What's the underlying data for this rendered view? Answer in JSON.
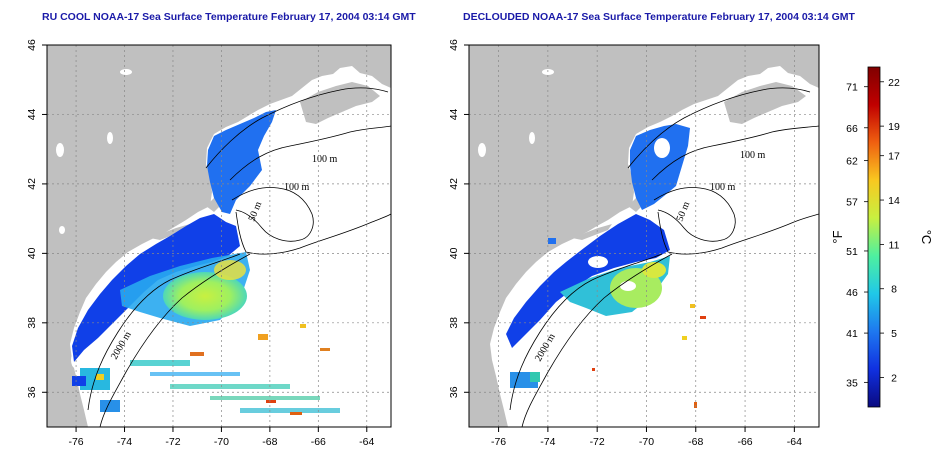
{
  "panels": [
    {
      "id": "left",
      "title": "RU COOL NOAA-17 Sea Surface Temperature February 17, 2004 03:14 GMT",
      "contour_labels": [
        "100 m",
        "100 m",
        "50 m",
        "2000 m"
      ]
    },
    {
      "id": "right",
      "title": "DECLOUDED NOAA-17 Sea Surface Temperature February 17, 2004 03:14 GMT",
      "contour_labels": [
        "100 m",
        "100 m",
        "50 m",
        "2000 m"
      ]
    }
  ],
  "axes": {
    "lon_ticks": [
      -76,
      -74,
      -72,
      -70,
      -68,
      -66,
      -64
    ],
    "lat_ticks": [
      36,
      38,
      40,
      42,
      44,
      46
    ],
    "lon_range": [
      -77.2,
      -63.0
    ],
    "lat_range": [
      35.0,
      46.0
    ]
  },
  "colorbar": {
    "fahrenheit_ticks": [
      35,
      41,
      46,
      51,
      57,
      62,
      66,
      71
    ],
    "celsius_ticks": [
      2,
      5,
      8,
      11,
      14,
      17,
      19,
      22
    ],
    "fahrenheit_label": "°F",
    "celsius_label": "°C",
    "range_c": [
      0,
      23
    ],
    "colors": [
      "#0a0a80",
      "#1030e0",
      "#1e78f0",
      "#20c8e8",
      "#4ef0a0",
      "#c8f040",
      "#f8c820",
      "#f06010",
      "#c00000",
      "#800000"
    ]
  },
  "colors": {
    "land": "#c0c0c0",
    "ocean_no_data": "#ffffff",
    "title": "#1a1aa8"
  }
}
